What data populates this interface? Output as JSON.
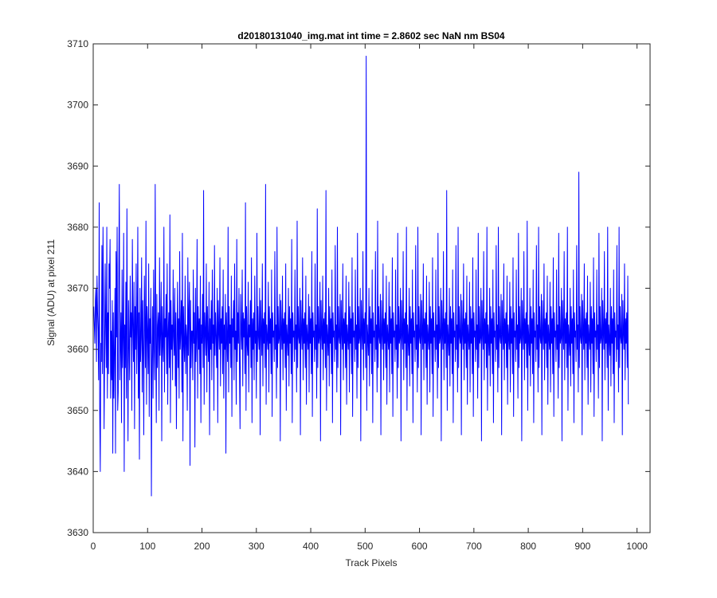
{
  "chart_data": {
    "type": "line",
    "title": "d20180131040_img.mat int time = 2.8602 sec  NaN nm BS04",
    "xlabel": "Track Pixels",
    "ylabel": "Signal (ADU) at pixel 211",
    "xlim": [
      0,
      1024
    ],
    "ylim": [
      3630,
      3710
    ],
    "xticks": [
      "0",
      "100",
      "200",
      "300",
      "400",
      "500",
      "600",
      "700",
      "800",
      "900",
      "1000"
    ],
    "yticks": [
      "3630",
      "3640",
      "3650",
      "3660",
      "3670",
      "3680",
      "3690",
      "3700",
      "3710"
    ],
    "grid": false,
    "line_color": "#0000ff",
    "series": [
      {
        "x_start": 1,
        "x_step": 1,
        "values": [
          3667,
          3664,
          3661,
          3668,
          3670,
          3658,
          3672,
          3666,
          3663,
          3655,
          3684,
          3650,
          3640,
          3661,
          3658,
          3677,
          3656,
          3680,
          3668,
          3647,
          3659,
          3674,
          3663,
          3657,
          3680,
          3652,
          3666,
          3656,
          3674,
          3670,
          3678,
          3652,
          3663,
          3655,
          3668,
          3643,
          3666,
          3652,
          3660,
          3670,
          3643,
          3676,
          3662,
          3680,
          3650,
          3653,
          3672,
          3687,
          3655,
          3661,
          3666,
          3648,
          3673,
          3657,
          3662,
          3679,
          3640,
          3664,
          3657,
          3671,
          3652,
          3683,
          3660,
          3645,
          3668,
          3661,
          3655,
          3672,
          3662,
          3666,
          3650,
          3678,
          3664,
          3658,
          3671,
          3647,
          3667,
          3660,
          3674,
          3656,
          3663,
          3680,
          3652,
          3666,
          3642,
          3670,
          3658,
          3662,
          3675,
          3653,
          3668,
          3660,
          3646,
          3672,
          3664,
          3657,
          3681,
          3651,
          3667,
          3663,
          3656,
          3674,
          3649,
          3665,
          3661,
          3670,
          3636,
          3658,
          3667,
          3652,
          3673,
          3660,
          3655,
          3687,
          3662,
          3648,
          3669,
          3657,
          3664,
          3666,
          3650,
          3675,
          3659,
          3663,
          3671,
          3645,
          3667,
          3661,
          3658,
          3680,
          3653,
          3665,
          3662,
          3669,
          3656,
          3674,
          3651,
          3663,
          3666,
          3657,
          3682,
          3648,
          3668,
          3660,
          3664,
          3655,
          3673,
          3662,
          3659,
          3670,
          3654,
          3666,
          3647,
          3661,
          3671,
          3657,
          3665,
          3652,
          3676,
          3660,
          3663,
          3668,
          3653,
          3679,
          3645,
          3667,
          3661,
          3658,
          3672,
          3656,
          3664,
          3662,
          3650,
          3675,
          3659,
          3666,
          3671,
          3641,
          3668,
          3657,
          3663,
          3663,
          3655,
          3673,
          3661,
          3666,
          3644,
          3670,
          3658,
          3662,
          3678,
          3652,
          3667,
          3660,
          3665,
          3656,
          3672,
          3648,
          3664,
          3661,
          3669,
          3657,
          3686,
          3651,
          3666,
          3663,
          3659,
          3674,
          3653,
          3667,
          3662,
          3658,
          3671,
          3646,
          3665,
          3660,
          3668,
          3655,
          3673,
          3661,
          3664,
          3650,
          3677,
          3659,
          3666,
          3662,
          3657,
          3670,
          3648,
          3668,
          3663,
          3660,
          3675,
          3654,
          3665,
          3661,
          3667,
          3656,
          3673,
          3652,
          3664,
          3660,
          3669,
          3643,
          3666,
          3662,
          3658,
          3680,
          3653,
          3667,
          3661,
          3664,
          3657,
          3672,
          3649,
          3665,
          3662,
          3668,
          3655,
          3674,
          3660,
          3663,
          3651,
          3678,
          3658,
          3666,
          3661,
          3670,
          3657,
          3647,
          3669,
          3663,
          3660,
          3673,
          3654,
          3666,
          3662,
          3665,
          3656,
          3684,
          3650,
          3667,
          3661,
          3659,
          3671,
          3653,
          3664,
          3662,
          3668,
          3657,
          3675,
          3648,
          3665,
          3660,
          3666,
          3655,
          3672,
          3661,
          3663,
          3652,
          3679,
          3658,
          3667,
          3662,
          3660,
          3670,
          3646,
          3668,
          3663,
          3659,
          3674,
          3654,
          3665,
          3661,
          3666,
          3657,
          3687,
          3651,
          3664,
          3662,
          3660,
          3671,
          3653,
          3667,
          3661,
          3665,
          3656,
          3673,
          3649,
          3666,
          3662,
          3663,
          3658,
          3676,
          3660,
          3664,
          3652,
          3680,
          3657,
          3667,
          3661,
          3662,
          3669,
          3645,
          3668,
          3663,
          3660,
          3672,
          3655,
          3665,
          3661,
          3666,
          3657,
          3674,
          3650,
          3664,
          3662,
          3659,
          3670,
          3654,
          3667,
          3661,
          3665,
          3656,
          3678,
          3648,
          3666,
          3662,
          3663,
          3658,
          3673,
          3660,
          3664,
          3653,
          3681,
          3657,
          3667,
          3662,
          3661,
          3670,
          3646,
          3668,
          3663,
          3660,
          3675,
          3655,
          3665,
          3661,
          3666,
          3657,
          3672,
          3651,
          3664,
          3662,
          3660,
          3669,
          3653,
          3667,
          3661,
          3665,
          3656,
          3676,
          3649,
          3666,
          3662,
          3663,
          3658,
          3674,
          3660,
          3664,
          3652,
          3683,
          3657,
          3667,
          3661,
          3662,
          3671,
          3645,
          3668,
          3663,
          3660,
          3672,
          3655,
          3665,
          3661,
          3666,
          3657,
          3686,
          3650,
          3664,
          3662,
          3659,
          3670,
          3654,
          3667,
          3661,
          3665,
          3656,
          3673,
          3648,
          3666,
          3662,
          3663,
          3658,
          3677,
          3660,
          3664,
          3653,
          3680,
          3657,
          3667,
          3662,
          3661,
          3669,
          3646,
          3668,
          3663,
          3660,
          3674,
          3655,
          3665,
          3661,
          3666,
          3657,
          3672,
          3651,
          3664,
          3662,
          3660,
          3671,
          3653,
          3667,
          3661,
          3665,
          3656,
          3675,
          3649,
          3666,
          3662,
          3663,
          3658,
          3673,
          3660,
          3664,
          3652,
          3679,
          3657,
          3667,
          3661,
          3662,
          3670,
          3645,
          3668,
          3663,
          3660,
          3676,
          3655,
          3665,
          3661,
          3666,
          3657,
          3708,
          3650,
          3664,
          3662,
          3659,
          3670,
          3654,
          3667,
          3661,
          3665,
          3656,
          3673,
          3648,
          3666,
          3662,
          3663,
          3658,
          3676,
          3660,
          3664,
          3653,
          3681,
          3657,
          3667,
          3662,
          3661,
          3669,
          3646,
          3668,
          3663,
          3660,
          3674,
          3655,
          3665,
          3661,
          3666,
          3657,
          3672,
          3651,
          3664,
          3662,
          3660,
          3671,
          3653,
          3667,
          3661,
          3665,
          3656,
          3675,
          3649,
          3666,
          3662,
          3663,
          3658,
          3673,
          3660,
          3664,
          3652,
          3679,
          3657,
          3667,
          3661,
          3662,
          3670,
          3645,
          3668,
          3663,
          3660,
          3676,
          3655,
          3665,
          3661,
          3666,
          3657,
          3680,
          3650,
          3664,
          3662,
          3659,
          3670,
          3654,
          3667,
          3661,
          3665,
          3656,
          3673,
          3648,
          3666,
          3662,
          3663,
          3658,
          3677,
          3660,
          3664,
          3653,
          3680,
          3657,
          3667,
          3662,
          3661,
          3669,
          3646,
          3668,
          3663,
          3660,
          3674,
          3655,
          3665,
          3661,
          3666,
          3657,
          3672,
          3651,
          3664,
          3662,
          3660,
          3671,
          3653,
          3667,
          3661,
          3665,
          3656,
          3675,
          3649,
          3666,
          3662,
          3663,
          3658,
          3673,
          3660,
          3664,
          3652,
          3679,
          3657,
          3667,
          3661,
          3662,
          3670,
          3645,
          3668,
          3663,
          3660,
          3676,
          3655,
          3665,
          3661,
          3666,
          3657,
          3686,
          3650,
          3664,
          3662,
          3659,
          3670,
          3654,
          3667,
          3661,
          3665,
          3656,
          3673,
          3648,
          3666,
          3662,
          3663,
          3658,
          3677,
          3660,
          3664,
          3653,
          3680,
          3657,
          3667,
          3662,
          3661,
          3669,
          3646,
          3668,
          3663,
          3660,
          3674,
          3655,
          3665,
          3661,
          3666,
          3657,
          3672,
          3651,
          3664,
          3662,
          3660,
          3671,
          3653,
          3667,
          3661,
          3665,
          3656,
          3675,
          3649,
          3666,
          3662,
          3663,
          3658,
          3673,
          3660,
          3664,
          3652,
          3679,
          3657,
          3667,
          3661,
          3662,
          3670,
          3645,
          3668,
          3663,
          3660,
          3676,
          3655,
          3665,
          3661,
          3666,
          3657,
          3680,
          3650,
          3664,
          3662,
          3659,
          3670,
          3654,
          3667,
          3661,
          3665,
          3656,
          3673,
          3648,
          3666,
          3662,
          3663,
          3658,
          3677,
          3660,
          3664,
          3653,
          3680,
          3657,
          3667,
          3662,
          3661,
          3669,
          3646,
          3668,
          3663,
          3660,
          3674,
          3655,
          3665,
          3661,
          3666,
          3657,
          3672,
          3651,
          3664,
          3662,
          3660,
          3671,
          3653,
          3667,
          3661,
          3665,
          3656,
          3675,
          3649,
          3666,
          3662,
          3663,
          3658,
          3673,
          3660,
          3664,
          3652,
          3679,
          3657,
          3667,
          3661,
          3662,
          3670,
          3645,
          3668,
          3663,
          3660,
          3676,
          3655,
          3665,
          3661,
          3666,
          3657,
          3681,
          3650,
          3664,
          3662,
          3659,
          3670,
          3654,
          3667,
          3661,
          3665,
          3656,
          3673,
          3648,
          3666,
          3662,
          3663,
          3658,
          3677,
          3660,
          3664,
          3653,
          3680,
          3657,
          3667,
          3662,
          3661,
          3669,
          3646,
          3668,
          3663,
          3660,
          3674,
          3655,
          3665,
          3661,
          3666,
          3657,
          3672,
          3651,
          3664,
          3662,
          3660,
          3671,
          3653,
          3667,
          3661,
          3665,
          3656,
          3675,
          3649,
          3666,
          3662,
          3663,
          3658,
          3673,
          3660,
          3664,
          3652,
          3679,
          3657,
          3667,
          3661,
          3662,
          3670,
          3645,
          3668,
          3663,
          3660,
          3676,
          3655,
          3665,
          3661,
          3666,
          3657,
          3680,
          3650,
          3664,
          3662,
          3659,
          3670,
          3654,
          3667,
          3661,
          3665,
          3656,
          3673,
          3648,
          3666,
          3662,
          3663,
          3658,
          3677,
          3660,
          3664,
          3653,
          3689,
          3657,
          3667,
          3662,
          3661,
          3669,
          3646,
          3668,
          3663,
          3660,
          3674,
          3655,
          3665,
          3661,
          3666,
          3657,
          3672,
          3651,
          3664,
          3662,
          3660,
          3671,
          3653,
          3667,
          3661,
          3665,
          3656,
          3675,
          3649,
          3666,
          3662,
          3663,
          3658,
          3673,
          3660,
          3664,
          3652,
          3679,
          3657,
          3667,
          3661,
          3662,
          3670,
          3645,
          3668,
          3663,
          3660,
          3676,
          3655,
          3665,
          3661,
          3666,
          3657,
          3680,
          3650,
          3664,
          3662,
          3659,
          3670,
          3654,
          3667,
          3661,
          3665,
          3656,
          3673,
          3648,
          3666,
          3662,
          3663,
          3658,
          3677,
          3660,
          3664,
          3653,
          3680,
          3657,
          3667,
          3662,
          3661,
          3669,
          3646,
          3668,
          3663,
          3660,
          3674,
          3655,
          3665,
          3661,
          3666,
          3657,
          3672,
          3651
        ]
      }
    ]
  }
}
